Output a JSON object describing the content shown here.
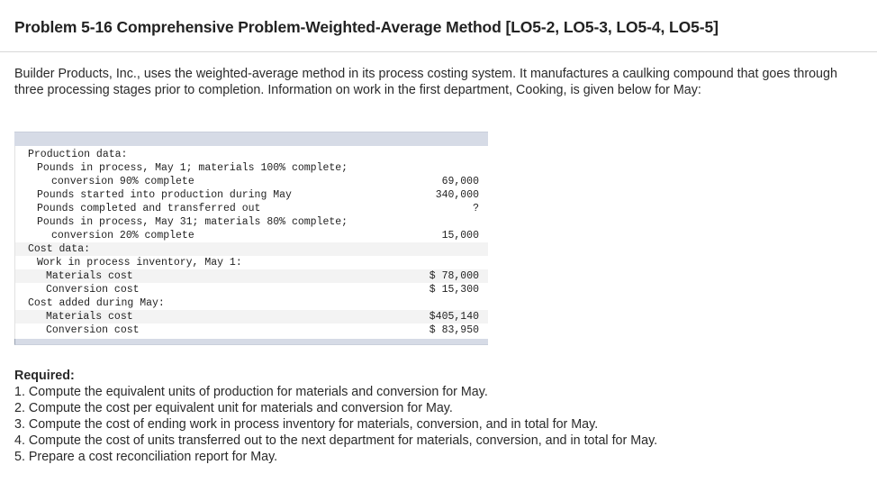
{
  "title": "Problem 5-16 Comprehensive Problem-Weighted-Average Method [LO5-2, LO5-3, LO5-4, LO5-5]",
  "intro": "Builder Products, Inc., uses the weighted-average method in its process costing system. It manufactures a caulking compound that goes through three processing stages prior to completion. Information on work in the first department, Cooking, is given below for May:",
  "table": {
    "rows": [
      {
        "label": "Production data:",
        "value": ""
      },
      {
        "label": "Pounds in process, May 1; materials 100% complete;",
        "value": ""
      },
      {
        "label": "conversion 90% complete",
        "value": "69,000"
      },
      {
        "label": "Pounds started into production during May",
        "value": "340,000"
      },
      {
        "label": "Pounds completed and transferred out",
        "value": "?"
      },
      {
        "label": "Pounds in process, May 31; materials 80% complete;",
        "value": ""
      },
      {
        "label": "conversion 20% complete",
        "value": "15,000"
      },
      {
        "label": "Cost data:",
        "value": ""
      },
      {
        "label": "Work in process inventory, May 1:",
        "value": ""
      },
      {
        "label": "Materials cost",
        "value": "$ 78,000"
      },
      {
        "label": "Conversion cost",
        "value": "$ 15,300"
      },
      {
        "label": "Cost added during May:",
        "value": ""
      },
      {
        "label": "Materials cost",
        "value": "$405,140"
      },
      {
        "label": "Conversion cost",
        "value": "$ 83,950"
      }
    ]
  },
  "required": {
    "heading": "Required:",
    "items": [
      "1. Compute the equivalent units of production for materials and conversion for May.",
      "2. Compute the cost per equivalent unit for materials and conversion for May.",
      "3. Compute the cost of ending work in process inventory for materials, conversion, and in total for May.",
      "4. Compute the cost of units transferred out to the next department for materials, conversion, and in total for May.",
      "5. Prepare a cost reconciliation report for May."
    ]
  }
}
